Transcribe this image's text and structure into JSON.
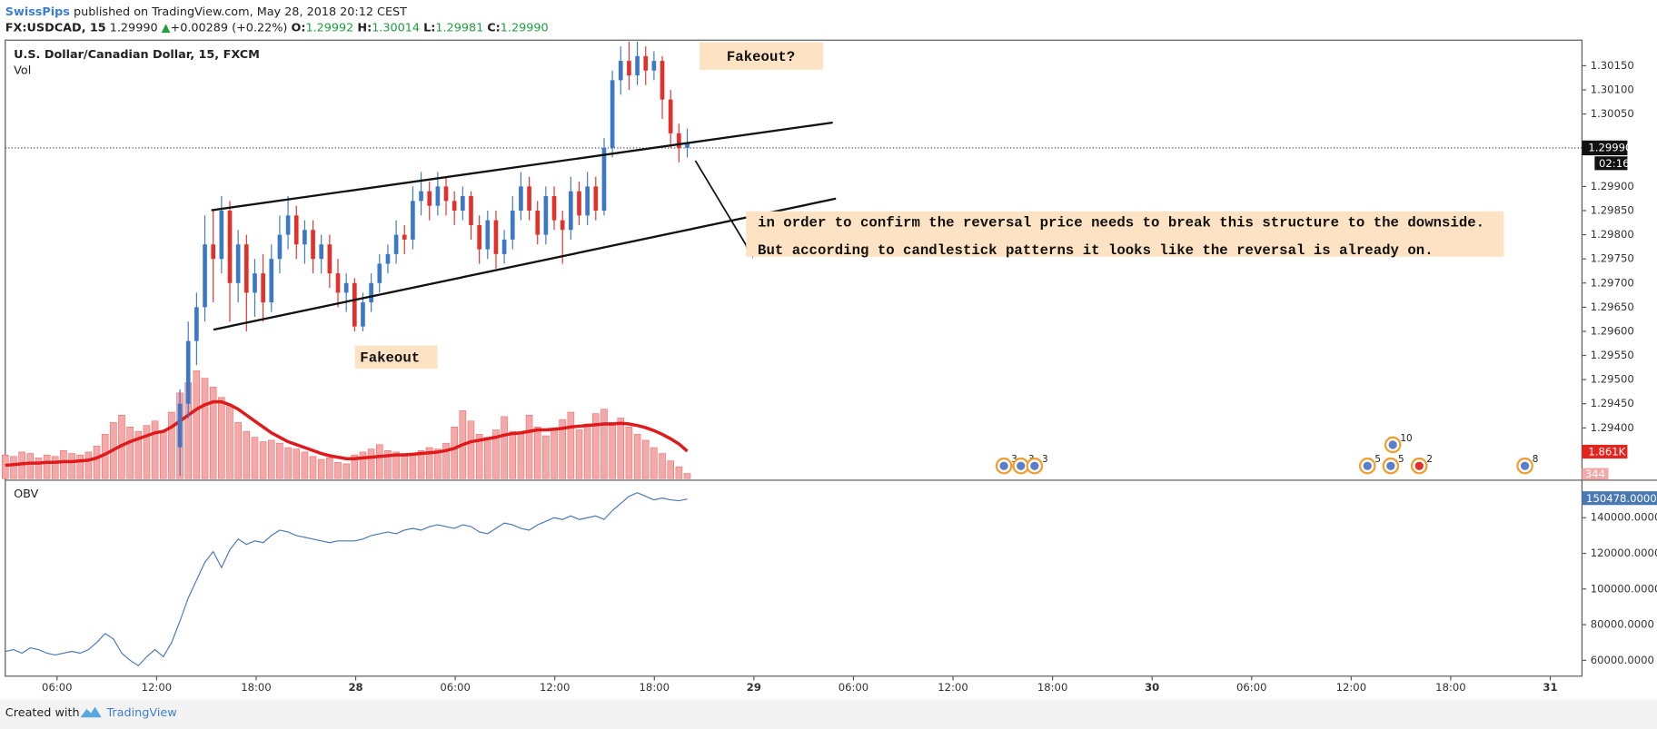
{
  "header": {
    "author": "SwissPips",
    "published": "published on TradingView.com, May 28, 2018 20:12 CEST",
    "symbol": "FX:USDCAD, 15",
    "last": "1.29990",
    "arrow": "▲",
    "change": "+0.00289 (+0.22%)",
    "o_label": "O:",
    "o": "1.29992",
    "h_label": "H:",
    "h": "1.30014",
    "l_label": "L:",
    "l": "1.29981",
    "c_label": "C:",
    "c": "1.29990"
  },
  "chart_data": {
    "type": "candlestick",
    "title": "U.S. Dollar/Canadian Dollar, 15, FXCM",
    "up_color": "#3b78c8",
    "down_color": "#e3302b",
    "x_labels": [
      "06:00",
      "12:00",
      "18:00",
      "28",
      "06:00",
      "12:00",
      "18:00",
      "29",
      "06:00",
      "12:00",
      "18:00",
      "30",
      "06:00",
      "12:00",
      "18:00",
      "31"
    ],
    "ylim": [
      1.29295,
      1.30203
    ],
    "yticks": [
      {
        "value": 1.3015,
        "label": "1.30150"
      },
      {
        "value": 1.301,
        "label": "1.30100"
      },
      {
        "value": 1.3005,
        "label": "1.30050"
      },
      {
        "value": 1.299,
        "label": "1.29900"
      },
      {
        "value": 1.2985,
        "label": "1.29850"
      },
      {
        "value": 1.298,
        "label": "1.29800"
      },
      {
        "value": 1.2975,
        "label": "1.29750"
      },
      {
        "value": 1.297,
        "label": "1.29700"
      },
      {
        "value": 1.2965,
        "label": "1.29650"
      },
      {
        "value": 1.296,
        "label": "1.29600"
      },
      {
        "value": 1.2955,
        "label": "1.29550"
      },
      {
        "value": 1.295,
        "label": "1.29500"
      },
      {
        "value": 1.2945,
        "label": "1.29450"
      },
      {
        "value": 1.294,
        "label": "1.29400"
      }
    ],
    "ohlc": [
      null,
      null,
      null,
      null,
      null,
      null,
      null,
      null,
      null,
      null,
      null,
      null,
      null,
      null,
      null,
      null,
      null,
      null,
      null,
      null,
      null,
      [
        1.2936,
        1.2948,
        1.293,
        1.2945
      ],
      [
        1.2945,
        1.2962,
        1.2942,
        1.2958
      ],
      [
        1.2958,
        1.2968,
        1.2953,
        1.2965
      ],
      [
        1.2965,
        1.2984,
        1.2962,
        1.2978
      ],
      [
        1.2978,
        1.2985,
        1.2966,
        1.2975
      ],
      [
        1.2975,
        1.2988,
        1.2972,
        1.2985
      ],
      [
        1.2985,
        1.2987,
        1.2962,
        1.297
      ],
      [
        1.297,
        1.2981,
        1.2966,
        1.2978
      ],
      [
        1.2978,
        1.298,
        1.296,
        1.2968
      ],
      [
        1.2968,
        1.2975,
        1.2963,
        1.2972
      ],
      [
        1.2972,
        1.2976,
        1.2962,
        1.2966
      ],
      [
        1.2966,
        1.2978,
        1.2964,
        1.2975
      ],
      [
        1.2975,
        1.2984,
        1.2972,
        1.298
      ],
      [
        1.298,
        1.2988,
        1.2977,
        1.2984
      ],
      [
        1.2984,
        1.2986,
        1.2975,
        1.2978
      ],
      [
        1.2978,
        1.2983,
        1.2974,
        1.2981
      ],
      [
        1.2981,
        1.2983,
        1.2972,
        1.2975
      ],
      [
        1.2975,
        1.298,
        1.2972,
        1.2978
      ],
      [
        1.2978,
        1.298,
        1.2969,
        1.2972
      ],
      [
        1.2972,
        1.2975,
        1.2965,
        1.2968
      ],
      [
        1.2968,
        1.2972,
        1.2964,
        1.297
      ],
      [
        1.297,
        1.2971,
        1.296,
        1.2961
      ],
      [
        1.2961,
        1.2968,
        1.296,
        1.2966
      ],
      [
        1.2966,
        1.2972,
        1.2964,
        1.297
      ],
      [
        1.297,
        1.2976,
        1.2968,
        1.2974
      ],
      [
        1.2974,
        1.2978,
        1.2972,
        1.2976
      ],
      [
        1.2976,
        1.2983,
        1.2974,
        1.298
      ],
      [
        1.298,
        1.2982,
        1.2976,
        1.2979
      ],
      [
        1.2979,
        1.299,
        1.2977,
        1.2987
      ],
      [
        1.2987,
        1.2993,
        1.2984,
        1.2989
      ],
      [
        1.2989,
        1.2991,
        1.2983,
        1.2986
      ],
      [
        1.2986,
        1.2993,
        1.2984,
        1.299
      ],
      [
        1.299,
        1.2992,
        1.2984,
        1.2987
      ],
      [
        1.2987,
        1.2989,
        1.2982,
        1.2985
      ],
      [
        1.2985,
        1.299,
        1.2983,
        1.2988
      ],
      [
        1.2988,
        1.2989,
        1.2979,
        1.2982
      ],
      [
        1.2982,
        1.2984,
        1.2974,
        1.2977
      ],
      [
        1.2977,
        1.2985,
        1.2975,
        1.2983
      ],
      [
        1.2983,
        1.2985,
        1.2973,
        1.2976
      ],
      [
        1.2976,
        1.2981,
        1.2974,
        1.2979
      ],
      [
        1.2979,
        1.2988,
        1.2977,
        1.2985
      ],
      [
        1.2985,
        1.2993,
        1.2983,
        1.299
      ],
      [
        1.299,
        1.2992,
        1.2983,
        1.2985
      ],
      [
        1.2985,
        1.2987,
        1.2978,
        1.298
      ],
      [
        1.298,
        1.299,
        1.2978,
        1.2988
      ],
      [
        1.2988,
        1.299,
        1.2981,
        1.2983
      ],
      [
        1.2983,
        1.2985,
        1.2974,
        1.2981
      ],
      [
        1.2981,
        1.2992,
        1.2979,
        1.2989
      ],
      [
        1.2989,
        1.2991,
        1.2982,
        1.2984
      ],
      [
        1.2984,
        1.2993,
        1.2982,
        1.299
      ],
      [
        1.299,
        1.2992,
        1.2983,
        1.2985
      ],
      [
        1.2985,
        1.3,
        1.2984,
        1.2998
      ],
      [
        1.2998,
        1.3014,
        1.2996,
        1.3012
      ],
      [
        1.3012,
        1.3019,
        1.3009,
        1.3016
      ],
      [
        1.3016,
        1.302,
        1.301,
        1.3013
      ],
      [
        1.3013,
        1.302,
        1.3011,
        1.3017
      ],
      [
        1.3017,
        1.3019,
        1.3011,
        1.3014
      ],
      [
        1.3014,
        1.3018,
        1.3012,
        1.3016
      ],
      [
        1.3016,
        1.3017,
        1.3004,
        1.3008
      ],
      [
        1.3008,
        1.301,
        1.2998,
        1.3001
      ],
      [
        1.3001,
        1.3003,
        1.2995,
        1.2998
      ],
      [
        1.2998,
        1.3002,
        1.2996,
        1.2999
      ]
    ],
    "volume": {
      "name": "Vol",
      "color": "#f4a9a8",
      "ma_color": "#e0191b",
      "y2lim": [
        0,
        29700
      ],
      "values": [
        1600,
        1500,
        1800,
        1700,
        1400,
        1600,
        1500,
        1900,
        1700,
        1600,
        1800,
        2200,
        3000,
        3800,
        4300,
        3500,
        3200,
        3600,
        3900,
        3200,
        4500,
        5800,
        6500,
        7300,
        6800,
        6200,
        5500,
        5000,
        3800,
        3200,
        2800,
        2500,
        2600,
        2400,
        2100,
        2000,
        1800,
        1500,
        1300,
        1400,
        1100,
        1000,
        1600,
        1800,
        2000,
        2300,
        1900,
        1800,
        1700,
        1600,
        1900,
        2100,
        2000,
        2400,
        3500,
        4600,
        3900,
        3000,
        2800,
        3300,
        4200,
        3200,
        3000,
        4300,
        3500,
        2900,
        3400,
        4000,
        4500,
        3300,
        3700,
        4400,
        4700,
        3800,
        4100,
        3500,
        3000,
        2600,
        2100,
        1700,
        1200,
        800,
        344
      ],
      "ma": [
        900,
        950,
        1000,
        1050,
        1050,
        1100,
        1100,
        1150,
        1150,
        1200,
        1250,
        1400,
        1650,
        1950,
        2250,
        2500,
        2700,
        2900,
        3100,
        3200,
        3500,
        3900,
        4300,
        4700,
        5000,
        5200,
        5200,
        5000,
        4700,
        4300,
        3900,
        3500,
        3100,
        2800,
        2500,
        2300,
        2100,
        1900,
        1700,
        1550,
        1450,
        1350,
        1350,
        1400,
        1450,
        1500,
        1550,
        1600,
        1600,
        1650,
        1700,
        1750,
        1800,
        1900,
        2050,
        2300,
        2500,
        2600,
        2700,
        2800,
        2950,
        3050,
        3100,
        3200,
        3300,
        3300,
        3350,
        3400,
        3500,
        3550,
        3600,
        3650,
        3700,
        3700,
        3750,
        3700,
        3600,
        3450,
        3250,
        3000,
        2700,
        2350,
        1861
      ]
    },
    "obv": {
      "name": "OBV",
      "color": "#4a78b4",
      "ylim": [
        51100,
        160150
      ],
      "yticks": [
        {
          "value": 140000,
          "label": "140000.0000"
        },
        {
          "value": 120000,
          "label": "120000.0000"
        },
        {
          "value": 100000,
          "label": "100000.0000"
        },
        {
          "value": 80000,
          "label": "80000.0000"
        },
        {
          "value": 60000,
          "label": "60000.0000"
        }
      ],
      "values": [
        65000,
        66000,
        64000,
        67000,
        66000,
        64000,
        63000,
        64000,
        65000,
        64000,
        66000,
        70000,
        75000,
        72000,
        64000,
        60000,
        57000,
        62000,
        66000,
        62000,
        70000,
        82000,
        95000,
        105000,
        115000,
        121000,
        112000,
        122000,
        128000,
        125000,
        127000,
        126000,
        130000,
        133000,
        132000,
        130000,
        129000,
        128000,
        127000,
        126000,
        127000,
        127000,
        127000,
        128000,
        130000,
        131000,
        132000,
        131000,
        133000,
        134000,
        133000,
        135000,
        136000,
        135000,
        134000,
        136000,
        135000,
        132000,
        131000,
        134000,
        137000,
        136000,
        134000,
        133000,
        136000,
        138000,
        140000,
        139000,
        141000,
        139000,
        140000,
        141000,
        139000,
        144000,
        148000,
        152000,
        154000,
        152000,
        150000,
        151000,
        150000,
        149500,
        150478
      ]
    },
    "price_labels": {
      "last": "1.29990",
      "countdown": "02:16",
      "vol_ma": "1.861K",
      "vol": "344",
      "obv": "150478.0000"
    },
    "annotations": {
      "fakeout_top": "Fakeout?",
      "fakeout_bottom": "Fakeout",
      "note_1": "in order to confirm the reversal price needs to break this structure to the downside.",
      "note_2": "But according to candlestick patterns it looks like the reversal is already on."
    },
    "events": [
      "3",
      "3",
      "3",
      "10",
      "5",
      "5",
      "2",
      "8"
    ]
  },
  "footer": {
    "created": "Created with",
    "brand": "TradingView"
  }
}
